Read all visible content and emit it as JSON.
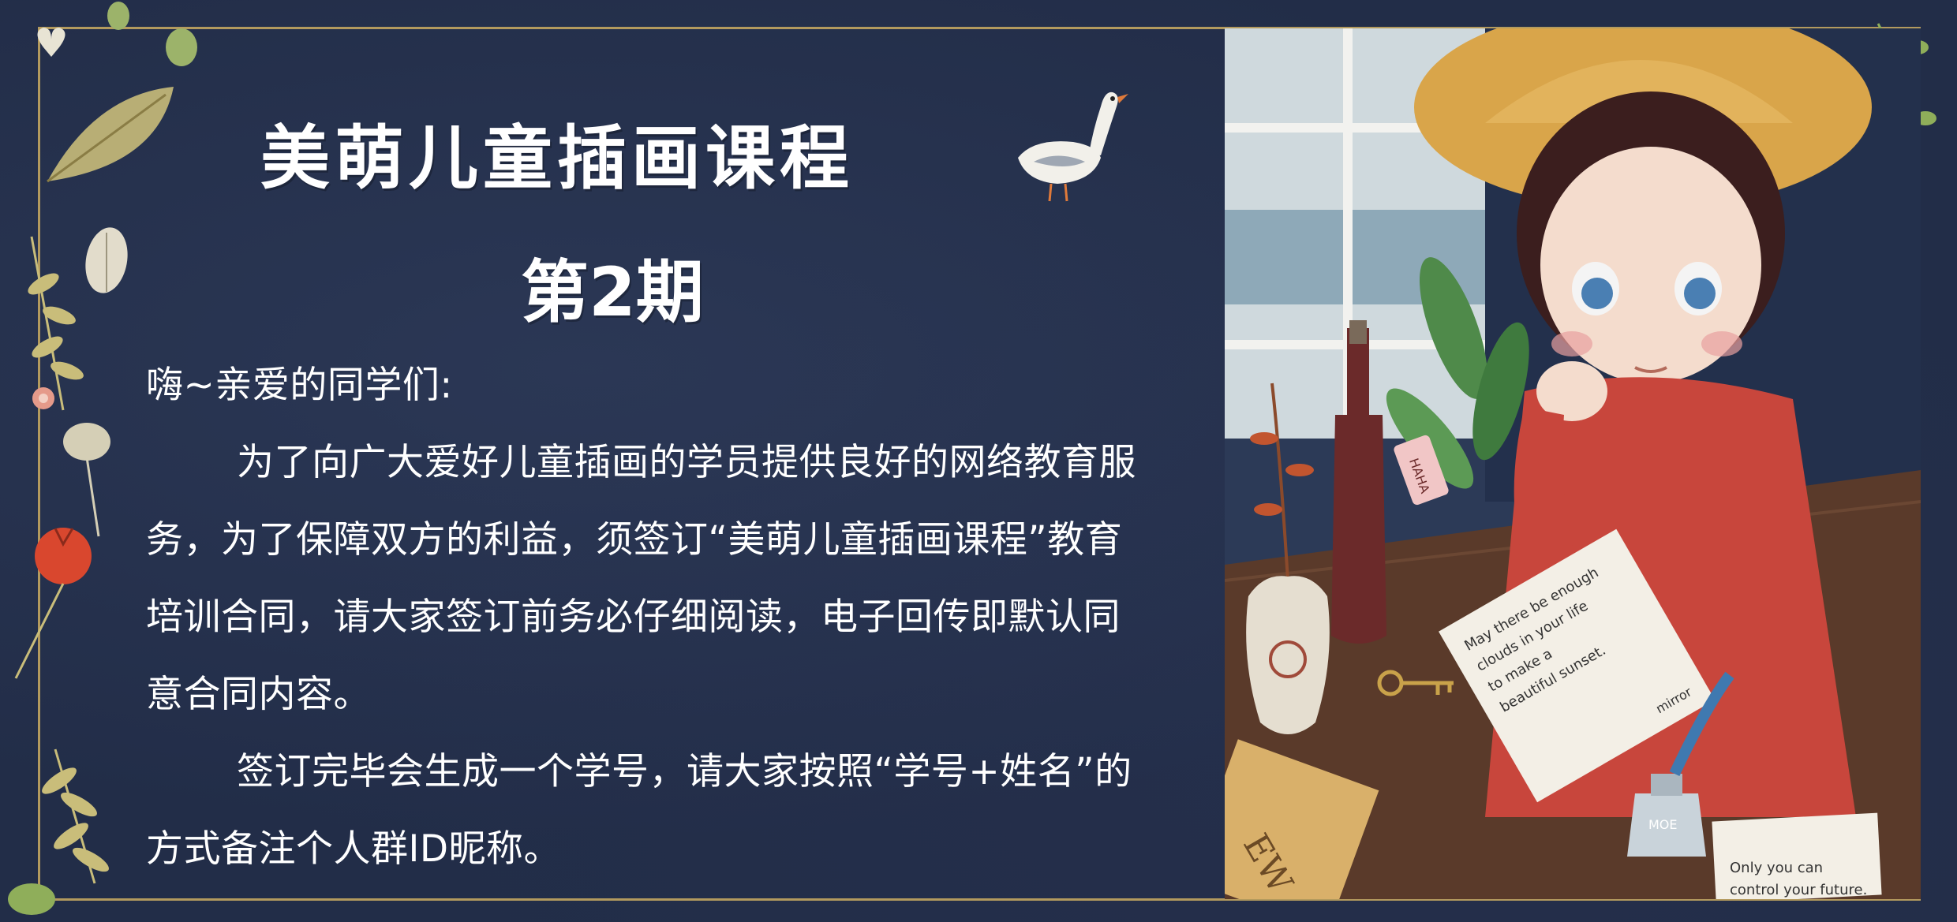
{
  "title": "美萌儿童插画课程",
  "subtitle": "第2期",
  "greeting": "嗨~亲爱的同学们:",
  "paragraph1": "为了向广大爱好儿童插画的学员提供良好的网络教育服务，为了保障双方的利益，须签订“美萌儿童插画课程”教育培训合同，请大家签订前务必仔细阅读，电子回传即默认同意合同内容。",
  "paragraph2": "签订完毕会生成一个学号，请大家按照“学号+姓名”的方式备注个人群ID昵称。",
  "illustration": {
    "tag_text": "HAHA",
    "letter_lines": [
      "May there be enough",
      "clouds in your life",
      "to make a",
      "beautiful sunset."
    ],
    "letter_corner": "mirror",
    "note_lines": [
      "Only you can",
      "control your future."
    ],
    "ink_label": "MOE",
    "book_text": "EW"
  },
  "colors": {
    "background": "#222d48",
    "frame": "#b39a5e",
    "text": "#ffffff",
    "dress": "#c8463c",
    "hat": "#d9a54a"
  }
}
